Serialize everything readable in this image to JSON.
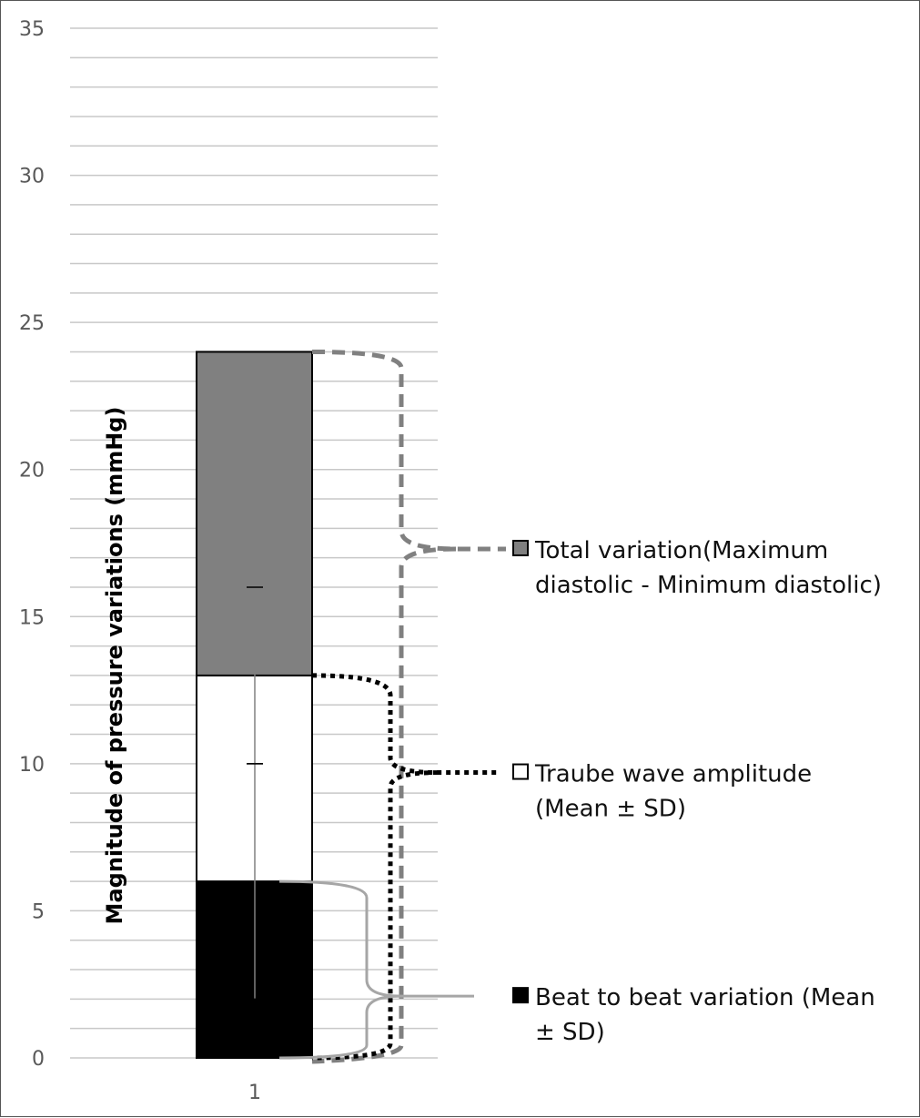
{
  "chart_data": {
    "type": "bar",
    "stacked": true,
    "categories": [
      "1"
    ],
    "ylim": [
      0,
      35
    ],
    "yticks": [
      0,
      5,
      10,
      15,
      20,
      25,
      30,
      35
    ],
    "minor_grid_step": 1,
    "ylabel": "Magnitude of pressure variations (mmHg)",
    "xlabel": "",
    "title": "",
    "series": [
      {
        "name": "Beat to beat variation (Mean ± SD)",
        "values": [
          6
        ],
        "color": "#000000"
      },
      {
        "name": "Traube wave amplitude (Mean ± SD)",
        "values": [
          7
        ],
        "color": "#ffffff"
      },
      {
        "name": "Total variation(Maximum diastolic - Minimum diastolic)",
        "values": [
          11
        ],
        "color": "#808080"
      }
    ],
    "error_bars": [
      {
        "center": 2,
        "low": 2,
        "high": 10,
        "label": "lower"
      },
      {
        "center": 10,
        "low": 10,
        "high": 16,
        "label": "upper"
      }
    ],
    "legend": {
      "placement": "right",
      "entries": [
        {
          "label_lines": [
            "Total variation(Maximum",
            "diastolic - Minimum diastolic)"
          ],
          "swatch": "#808080"
        },
        {
          "label_lines": [
            " Traube wave amplitude",
            "(Mean ± SD)"
          ],
          "swatch": "#ffffff"
        },
        {
          "label_lines": [
            "Beat to beat variation (Mean",
            "± SD)"
          ],
          "swatch": "#000000"
        }
      ]
    },
    "gridlines": true,
    "grid_color": "#c8c8c8"
  }
}
